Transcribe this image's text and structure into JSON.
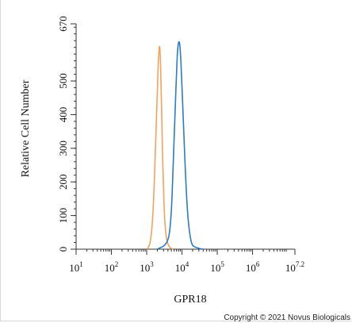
{
  "copyright": "Copyright © 2021 Novus Biologicals",
  "chart_data": {
    "type": "line",
    "xlabel": "GPR18",
    "ylabel": "Relative Cell Number",
    "x_scale": "log",
    "xlim": [
      1,
      7.2
    ],
    "ylim": [
      0,
      670
    ],
    "x_ticks": [
      {
        "value": 1,
        "base": "10",
        "exp": "1"
      },
      {
        "value": 2,
        "base": "10",
        "exp": "2"
      },
      {
        "value": 3,
        "base": "10",
        "exp": "3"
      },
      {
        "value": 4,
        "base": "10",
        "exp": "4"
      },
      {
        "value": 5,
        "base": "10",
        "exp": "5"
      },
      {
        "value": 6,
        "base": "10",
        "exp": "6"
      },
      {
        "value": 7.2,
        "base": "10",
        "exp": "7.2"
      }
    ],
    "y_ticks": [
      0,
      100,
      200,
      300,
      400,
      500,
      670
    ],
    "grid": false,
    "legend": "none",
    "series": [
      {
        "color": "#f5a25a",
        "x": [
          3.0,
          3.05,
          3.1,
          3.15,
          3.2,
          3.25,
          3.3,
          3.33,
          3.36,
          3.38,
          3.4,
          3.42,
          3.44,
          3.46,
          3.48,
          3.5,
          3.52,
          3.56,
          3.6,
          3.65,
          3.7,
          3.75
        ],
        "y": [
          0,
          5,
          20,
          60,
          150,
          300,
          470,
          560,
          610,
          590,
          520,
          430,
          320,
          240,
          170,
          110,
          70,
          30,
          15,
          5,
          2,
          0
        ]
      },
      {
        "color": "#2b7bc9",
        "x": [
          3.3,
          3.4,
          3.5,
          3.6,
          3.65,
          3.7,
          3.75,
          3.8,
          3.85,
          3.88,
          3.91,
          3.94,
          3.97,
          4.0,
          4.05,
          4.1,
          4.15,
          4.2,
          4.25,
          4.3,
          4.4,
          4.5,
          4.6
        ],
        "y": [
          0,
          5,
          10,
          25,
          50,
          110,
          240,
          400,
          540,
          600,
          620,
          610,
          560,
          480,
          350,
          220,
          120,
          60,
          25,
          10,
          5,
          2,
          0
        ]
      }
    ]
  }
}
